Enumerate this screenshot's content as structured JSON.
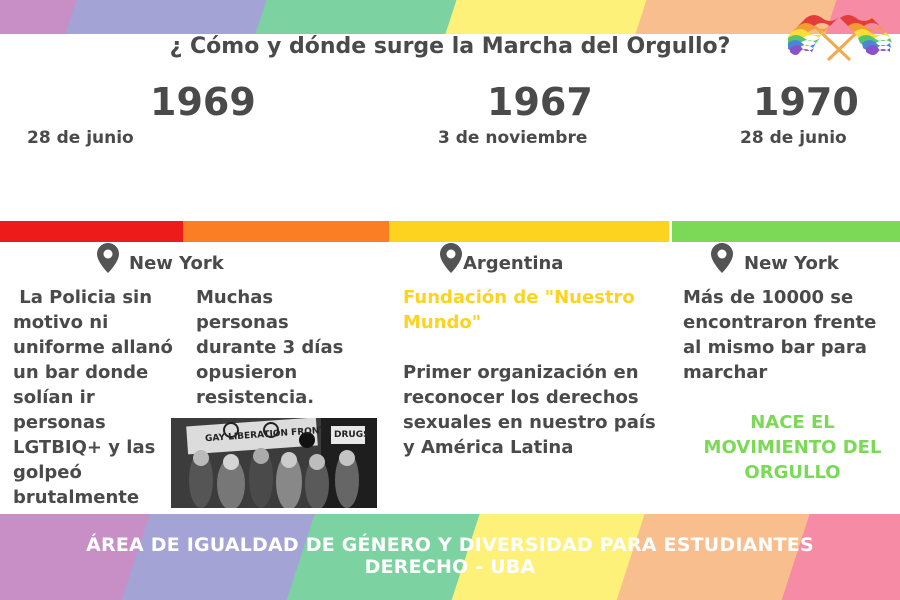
{
  "colors": {
    "stripes": [
      "#c78fc5",
      "#a3a3d6",
      "#7cd3a1",
      "#fef17a",
      "#f9be8e",
      "#f58ba4"
    ],
    "timeline": [
      "#ee1b1b",
      "#fb7d24",
      "#fed320",
      "#7cd957"
    ],
    "highlight_yellow": "#fed320",
    "highlight_green": "#7cd957"
  },
  "header": {
    "title": "¿ Cómo y dónde surge la Marcha del Orgullo?"
  },
  "timeline": [
    {
      "year": "1969",
      "date": "28 de junio",
      "location": "New York",
      "text_left": " La Policia sin motivo ni uniforme allanó un bar donde solían ir personas LGTBIQ+ y las golpeó brutalmente",
      "text_right": "Muchas personas durante 3 días opusieron resistencia."
    },
    {
      "year": "1967",
      "date": "3 de noviembre",
      "location": "Argentina",
      "highlight": "Fundación de \"Nuestro Mundo\"",
      "text": "Primer organización en reconocer los derechos sexuales en nuestro país y América Latina"
    },
    {
      "year": "1970",
      "date": "28 de junio",
      "location": "New York",
      "text": "Más de 10000 se encontraron frente al mismo bar para marchar",
      "highlight": "NACE EL MOVIMIENTO DEL ORGULLO"
    }
  ],
  "photo": {
    "sign_text": "GAY LIBERATION FRONT",
    "sign_small": "DRUGS"
  },
  "footer": {
    "line1": "ÁREA DE IGUALDAD DE GÉNERO Y DIVERSIDAD PARA ESTUDIANTES",
    "line2": "DERECHO - UBA"
  },
  "icons": [
    "location-pin-icon",
    "pride-flags-icon"
  ]
}
